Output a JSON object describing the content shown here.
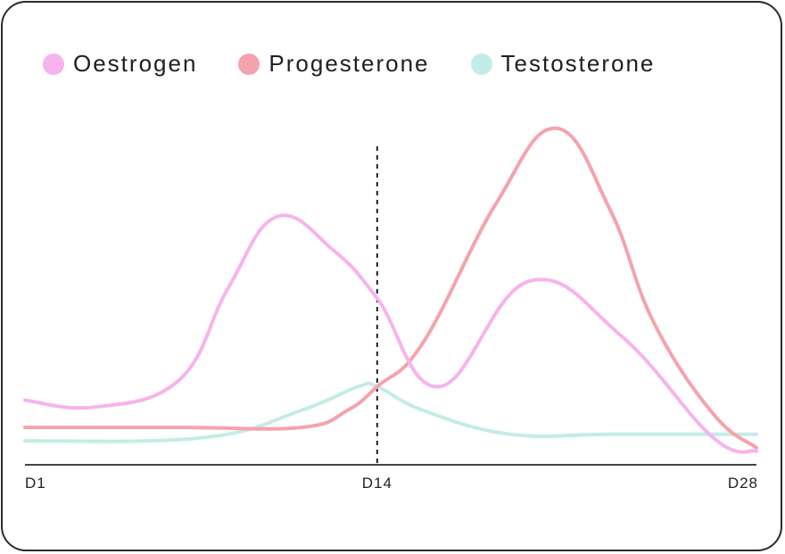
{
  "chart_data": {
    "type": "line",
    "x_ticks": [
      "D1",
      "D14",
      "D28"
    ],
    "xlim": [
      1,
      28
    ],
    "ylim": [
      0,
      10
    ],
    "legend_position": "top-left",
    "grid": false,
    "marker_line": {
      "x": 14,
      "style": "dashed"
    },
    "series": [
      {
        "name": "Oestrogen",
        "color": "#f7b3ec",
        "x": [
          1,
          3.6,
          6.7,
          8.5,
          10.3,
          12.4,
          14,
          16.3,
          19.6,
          23,
          26.4,
          28
        ],
        "y": [
          1.9,
          1.7,
          2.5,
          5.2,
          7.3,
          6.3,
          4.9,
          2.3,
          5.4,
          3.8,
          0.8,
          0.4
        ]
      },
      {
        "name": "Progesterone",
        "color": "#f4a3ac",
        "x": [
          1,
          6.7,
          11.2,
          12.9,
          14,
          15.7,
          18.4,
          20.6,
          22.6,
          24.2,
          26.4,
          28
        ],
        "y": [
          1.1,
          1.1,
          1.1,
          1.6,
          2.3,
          3.6,
          7.7,
          9.9,
          7.5,
          4.2,
          1.5,
          0.5
        ]
      },
      {
        "name": "Testosterone",
        "color": "#c4ece6",
        "x": [
          1,
          7.6,
          11.2,
          13.3,
          14,
          15.7,
          18.9,
          22.6,
          26.4,
          28
        ],
        "y": [
          0.7,
          0.8,
          1.6,
          2.3,
          2.3,
          1.6,
          0.9,
          0.9,
          0.9,
          0.9
        ]
      }
    ]
  }
}
